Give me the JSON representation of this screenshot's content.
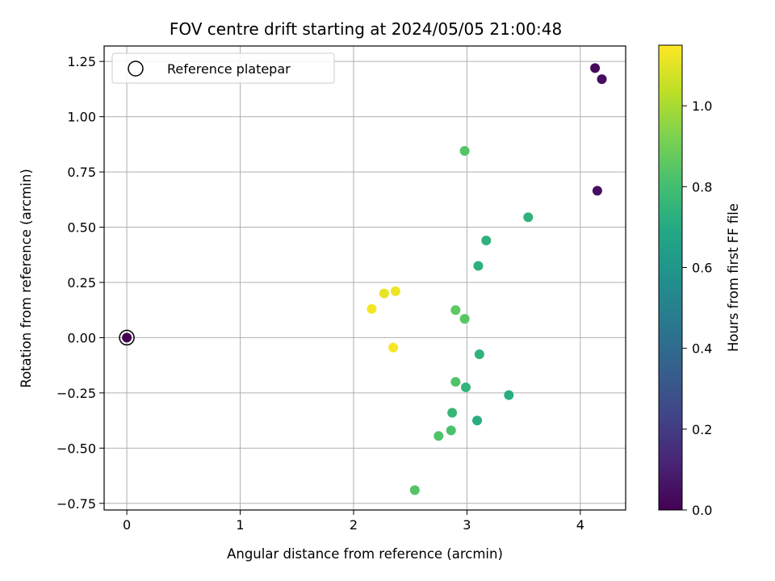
{
  "chart_data": {
    "type": "scatter",
    "title": "FOV centre drift starting at 2024/05/05 21:00:48",
    "xlabel": "Angular distance from reference (arcmin)",
    "ylabel": "Rotation from reference (arcmin)",
    "xlim": [
      -0.2,
      4.4
    ],
    "ylim": [
      -0.78,
      1.32
    ],
    "xticks": [
      0,
      1,
      2,
      3,
      4
    ],
    "xtick_labels": [
      "0",
      "1",
      "2",
      "3",
      "4"
    ],
    "yticks": [
      -0.75,
      -0.5,
      -0.25,
      0.0,
      0.25,
      0.5,
      0.75,
      1.0,
      1.25
    ],
    "ytick_labels": [
      "−0.75",
      "−0.50",
      "−0.25",
      "0.00",
      "0.25",
      "0.50",
      "0.75",
      "1.00",
      "1.25"
    ],
    "grid": true,
    "legend": {
      "position": "top-left",
      "entries": [
        "Reference platepar"
      ]
    },
    "reference_point": {
      "x": 0.0,
      "y": 0.0
    },
    "colorbar": {
      "label": "Hours from first FF file",
      "colormap": "viridis",
      "range": [
        0.0,
        1.15
      ],
      "ticks": [
        0.0,
        0.2,
        0.4,
        0.6,
        0.8,
        1.0
      ],
      "tick_labels": [
        "0.0",
        "0.2",
        "0.4",
        "0.6",
        "0.8",
        "1.0"
      ]
    },
    "points": [
      {
        "x": 0.0,
        "y": 0.0,
        "c": 0.0
      },
      {
        "x": 4.13,
        "y": 1.22,
        "c": 0.03
      },
      {
        "x": 4.19,
        "y": 1.17,
        "c": 0.04
      },
      {
        "x": 4.15,
        "y": 0.665,
        "c": 0.05
      },
      {
        "x": 2.98,
        "y": 0.845,
        "c": 0.84
      },
      {
        "x": 3.54,
        "y": 0.545,
        "c": 0.74
      },
      {
        "x": 3.17,
        "y": 0.44,
        "c": 0.73
      },
      {
        "x": 3.1,
        "y": 0.325,
        "c": 0.73
      },
      {
        "x": 2.37,
        "y": 0.21,
        "c": 1.12
      },
      {
        "x": 2.27,
        "y": 0.2,
        "c": 1.11
      },
      {
        "x": 2.16,
        "y": 0.13,
        "c": 1.13
      },
      {
        "x": 2.9,
        "y": 0.125,
        "c": 0.86
      },
      {
        "x": 2.98,
        "y": 0.085,
        "c": 0.85
      },
      {
        "x": 2.35,
        "y": -0.045,
        "c": 1.14
      },
      {
        "x": 3.11,
        "y": -0.075,
        "c": 0.74
      },
      {
        "x": 2.9,
        "y": -0.2,
        "c": 0.83
      },
      {
        "x": 2.99,
        "y": -0.225,
        "c": 0.75
      },
      {
        "x": 3.37,
        "y": -0.26,
        "c": 0.72
      },
      {
        "x": 2.87,
        "y": -0.34,
        "c": 0.76
      },
      {
        "x": 3.09,
        "y": -0.375,
        "c": 0.72
      },
      {
        "x": 2.86,
        "y": -0.42,
        "c": 0.82
      },
      {
        "x": 2.75,
        "y": -0.445,
        "c": 0.83
      },
      {
        "x": 2.54,
        "y": -0.69,
        "c": 0.84
      }
    ]
  }
}
